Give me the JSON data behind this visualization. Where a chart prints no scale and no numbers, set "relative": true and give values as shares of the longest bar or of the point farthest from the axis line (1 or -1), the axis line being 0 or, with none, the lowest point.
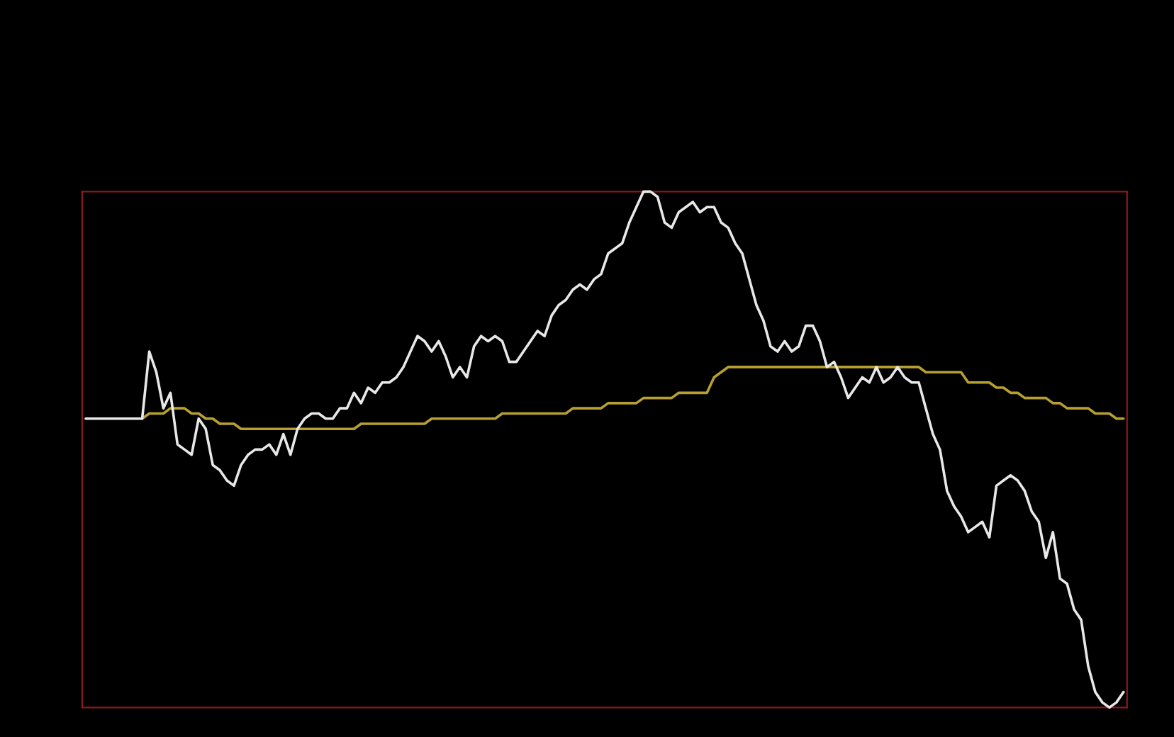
{
  "chart_data": {
    "type": "line",
    "relative": true,
    "legend": false,
    "categories": [
      null,
      null,
      null,
      null,
      null,
      null,
      null,
      null,
      null,
      null,
      null,
      null,
      null,
      null,
      null,
      null,
      null,
      null,
      null,
      null,
      null,
      null,
      null,
      null,
      null,
      null,
      null,
      null,
      null,
      null,
      null,
      null,
      null,
      null,
      null,
      null,
      null,
      null,
      null,
      null,
      null,
      null,
      null,
      null,
      null,
      null,
      null,
      null,
      null,
      null,
      null,
      null,
      null,
      null,
      null,
      null,
      null,
      null,
      null,
      null,
      null,
      null,
      null,
      null,
      null,
      null,
      null,
      null,
      null,
      null,
      null,
      null,
      null,
      null,
      null,
      null,
      null,
      null,
      null,
      null,
      null,
      null,
      null,
      null,
      null,
      null,
      null,
      null,
      null,
      null,
      null,
      null,
      null,
      null,
      null,
      null,
      null,
      null,
      null,
      null,
      null,
      null,
      null,
      null,
      null,
      null,
      null,
      null,
      null,
      null,
      null,
      null,
      null,
      null,
      null,
      null,
      null,
      null,
      null,
      null,
      null,
      null,
      null,
      null,
      null,
      null,
      null,
      null,
      null,
      null,
      null,
      null,
      null,
      null,
      null,
      null,
      null,
      null,
      null,
      null,
      null,
      null,
      null,
      null,
      null,
      null,
      null,
      null
    ],
    "series": [
      {
        "color": "#e8e8e8",
        "values": [
          0.56,
          0.56,
          0.56,
          0.56,
          0.56,
          0.56,
          0.56,
          0.56,
          0.56,
          0.69,
          0.65,
          0.58,
          0.61,
          0.51,
          0.5,
          0.49,
          0.56,
          0.54,
          0.47,
          0.46,
          0.44,
          0.43,
          0.47,
          0.49,
          0.5,
          0.5,
          0.51,
          0.49,
          0.53,
          0.49,
          0.54,
          0.56,
          0.57,
          0.57,
          0.56,
          0.56,
          0.58,
          0.58,
          0.61,
          0.59,
          0.62,
          0.61,
          0.63,
          0.63,
          0.64,
          0.66,
          0.69,
          0.72,
          0.71,
          0.69,
          0.71,
          0.68,
          0.64,
          0.66,
          0.64,
          0.7,
          0.72,
          0.71,
          0.72,
          0.71,
          0.67,
          0.67,
          0.69,
          0.71,
          0.73,
          0.72,
          0.76,
          0.78,
          0.79,
          0.81,
          0.82,
          0.81,
          0.83,
          0.84,
          0.88,
          0.89,
          0.9,
          0.94,
          0.97,
          1,
          1,
          0.99,
          0.94,
          0.93,
          0.96,
          0.97,
          0.98,
          0.96,
          0.97,
          0.97,
          0.94,
          0.93,
          0.9,
          0.88,
          0.83,
          0.78,
          0.75,
          0.7,
          0.69,
          0.71,
          0.69,
          0.7,
          0.74,
          0.74,
          0.71,
          0.66,
          0.67,
          0.64,
          0.6,
          0.62,
          0.64,
          0.63,
          0.66,
          0.63,
          0.64,
          0.66,
          0.64,
          0.63,
          0.63,
          0.58,
          0.53,
          0.5,
          0.42,
          0.39,
          0.37,
          0.34,
          0.35,
          0.36,
          0.33,
          0.43,
          0.44,
          0.45,
          0.44,
          0.42,
          0.38,
          0.36,
          0.29,
          0.34,
          0.25,
          0.24,
          0.19,
          0.17,
          0.08,
          0.03,
          0.01,
          0,
          0.01,
          0.03
        ]
      },
      {
        "color": "#b8a030",
        "values": [
          null,
          null,
          null,
          null,
          null,
          null,
          null,
          null,
          0.56,
          0.57,
          0.57,
          0.57,
          0.58,
          0.58,
          0.58,
          0.57,
          0.57,
          0.56,
          0.56,
          0.55,
          0.55,
          0.55,
          0.54,
          0.54,
          0.54,
          0.54,
          0.54,
          0.54,
          0.54,
          0.54,
          0.54,
          0.54,
          0.54,
          0.54,
          0.54,
          0.54,
          0.54,
          0.54,
          0.54,
          0.55,
          0.55,
          0.55,
          0.55,
          0.55,
          0.55,
          0.55,
          0.55,
          0.55,
          0.55,
          0.56,
          0.56,
          0.56,
          0.56,
          0.56,
          0.56,
          0.56,
          0.56,
          0.56,
          0.56,
          0.57,
          0.57,
          0.57,
          0.57,
          0.57,
          0.57,
          0.57,
          0.57,
          0.57,
          0.57,
          0.58,
          0.58,
          0.58,
          0.58,
          0.58,
          0.59,
          0.59,
          0.59,
          0.59,
          0.59,
          0.6,
          0.6,
          0.6,
          0.6,
          0.6,
          0.61,
          0.61,
          0.61,
          0.61,
          0.61,
          0.64,
          0.65,
          0.66,
          0.66,
          0.66,
          0.66,
          0.66,
          0.66,
          0.66,
          0.66,
          0.66,
          0.66,
          0.66,
          0.66,
          0.66,
          0.66,
          0.66,
          0.66,
          0.66,
          0.66,
          0.66,
          0.66,
          0.66,
          0.66,
          0.66,
          0.66,
          0.66,
          0.66,
          0.66,
          0.66,
          0.65,
          0.65,
          0.65,
          0.65,
          0.65,
          0.65,
          0.63,
          0.63,
          0.63,
          0.63,
          0.62,
          0.62,
          0.61,
          0.61,
          0.6,
          0.6,
          0.6,
          0.6,
          0.59,
          0.59,
          0.58,
          0.58,
          0.58,
          0.58,
          0.57,
          0.57,
          0.57,
          0.56,
          0.56
        ]
      }
    ]
  }
}
